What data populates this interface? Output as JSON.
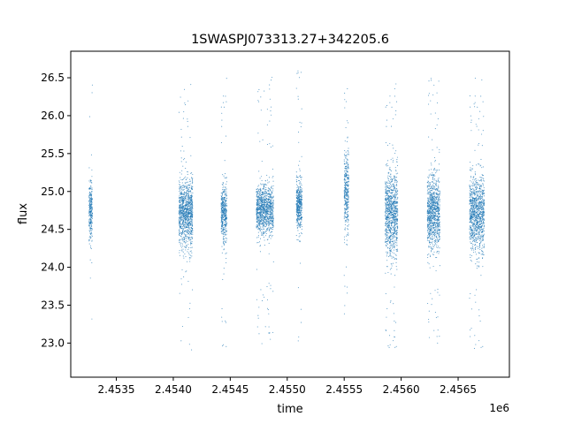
{
  "chart_data": {
    "type": "scatter",
    "title": "1SWASPJ073313.27+342205.6",
    "xlabel": "time",
    "ylabel": "flux",
    "x_offset_label": "1e6",
    "xlim": [
      2453100,
      2456950
    ],
    "ylim": [
      22.55,
      26.85
    ],
    "x_ticks": [
      2453500,
      2454000,
      2454500,
      2455000,
      2455500,
      2456000,
      2456500
    ],
    "x_tick_labels": [
      "2.4535",
      "2.4540",
      "2.4545",
      "2.4550",
      "2.4555",
      "2.4560",
      "2.4565"
    ],
    "y_ticks": [
      23.0,
      23.5,
      24.0,
      24.5,
      25.0,
      25.5,
      26.0,
      26.5
    ],
    "y_tick_labels": [
      "23.0",
      "23.5",
      "24.0",
      "24.5",
      "25.0",
      "25.5",
      "26.0",
      "26.5"
    ],
    "grid": false,
    "marker_color": "#1f77b4",
    "observing_seasons": [
      {
        "x_range": [
          2453260,
          2453290
        ],
        "flux_center": 24.75,
        "flux_spread": 0.35
      },
      {
        "x_range": [
          2454050,
          2454170
        ],
        "flux_center": 24.7,
        "flux_spread": 0.4
      },
      {
        "x_range": [
          2454420,
          2454470
        ],
        "flux_center": 24.7,
        "flux_spread": 0.35
      },
      {
        "x_range": [
          2454730,
          2454880
        ],
        "flux_center": 24.75,
        "flux_spread": 0.3
      },
      {
        "x_range": [
          2455080,
          2455130
        ],
        "flux_center": 24.8,
        "flux_spread": 0.3
      },
      {
        "x_range": [
          2455500,
          2455540
        ],
        "flux_center": 25.0,
        "flux_spread": 0.5
      },
      {
        "x_range": [
          2455860,
          2455970
        ],
        "flux_center": 24.7,
        "flux_spread": 0.5
      },
      {
        "x_range": [
          2456230,
          2456340
        ],
        "flux_center": 24.7,
        "flux_spread": 0.45
      },
      {
        "x_range": [
          2456600,
          2456730
        ],
        "flux_center": 24.7,
        "flux_spread": 0.45
      }
    ]
  }
}
